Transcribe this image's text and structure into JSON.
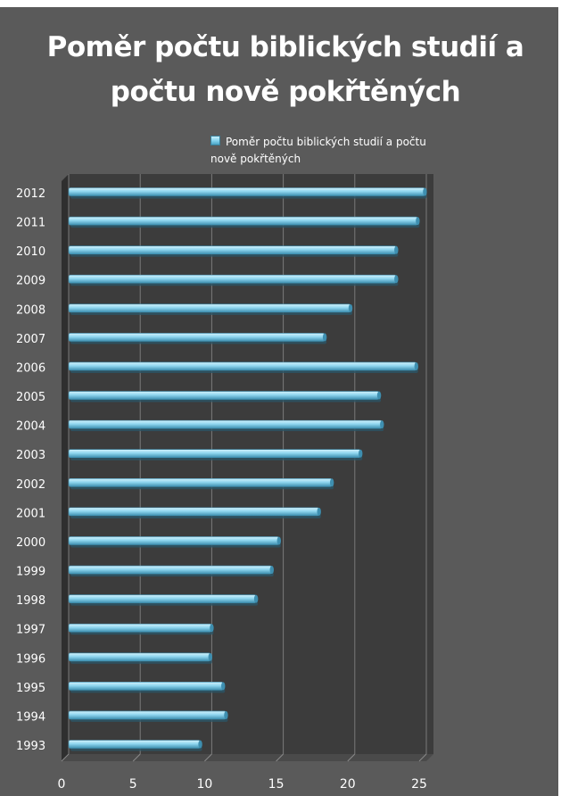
{
  "chart_data": {
    "type": "bar",
    "orientation": "horizontal",
    "title": "Poměr počtu biblických studií a počtu nově pokřtěných",
    "categories": [
      "1993",
      "1994",
      "1995",
      "1996",
      "1997",
      "1998",
      "1999",
      "2000",
      "2001",
      "2002",
      "2003",
      "2004",
      "2005",
      "2006",
      "2007",
      "2008",
      "2009",
      "2010",
      "2011",
      "2012"
    ],
    "series": [
      {
        "name": "Poměr počtu biblických studií a počtu nově pokřtěných",
        "values": [
          9.2,
          11.0,
          10.8,
          9.9,
          10.0,
          13.1,
          14.2,
          14.7,
          17.5,
          18.4,
          20.4,
          21.9,
          21.7,
          24.3,
          17.9,
          19.7,
          22.9,
          22.9,
          24.4,
          24.9
        ]
      }
    ],
    "xlim": [
      0,
      25
    ],
    "xticks": [
      "0",
      "5",
      "10",
      "15",
      "20",
      "25"
    ],
    "grid": true,
    "legend_position": "top-right",
    "colors": {
      "bar": "#8fd6ef",
      "bar_highlight": "#d2f1fb",
      "bar_shadow": "#3e8fb0",
      "plot_background": "#3c3c3c",
      "panel_background": "#5a5a5a",
      "text": "#ffffff",
      "gridline": "#7a7a7a"
    }
  }
}
